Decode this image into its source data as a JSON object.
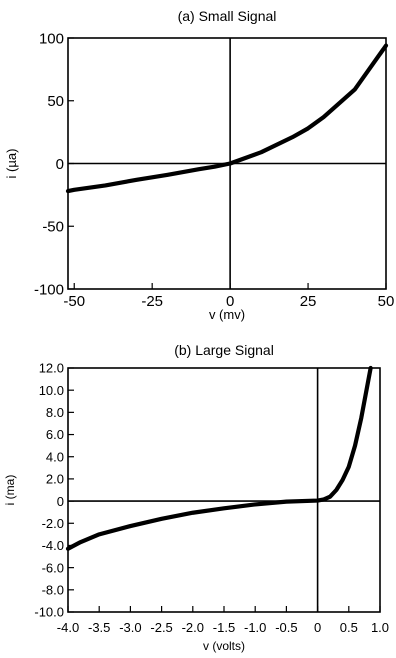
{
  "chart_data": [
    {
      "type": "line",
      "title": "(a) Small Signal",
      "xlabel": "v (mv)",
      "ylabel": "i (µa)",
      "xlim": [
        -52,
        50
      ],
      "ylim": [
        -100,
        100
      ],
      "grid": false,
      "zero_axes": true,
      "x_ticks": [
        -50,
        -25,
        0,
        25,
        50
      ],
      "x_tick_labels": [
        "-50",
        "-25",
        "0",
        "25",
        "50"
      ],
      "y_ticks": [
        100,
        50,
        0,
        -50,
        -100
      ],
      "y_tick_labels": [
        "100",
        "50",
        "0",
        "-50",
        "-100"
      ],
      "series": [
        {
          "line_color": "#000000",
          "x": [
            -52,
            -50,
            -40,
            -30,
            -25,
            -20,
            -10,
            -5,
            0,
            5,
            10,
            20,
            25,
            30,
            40,
            50
          ],
          "y": [
            -22,
            -21,
            -17.5,
            -13,
            -11,
            -9,
            -4.5,
            -2.5,
            0,
            4.5,
            9,
            21,
            28,
            37,
            59,
            94
          ]
        }
      ]
    },
    {
      "type": "line",
      "title": "(b) Large Signal",
      "xlabel": "v (volts)",
      "ylabel": "i (ma)",
      "xlim": [
        -4.0,
        1.0
      ],
      "ylim": [
        -10.0,
        12.0
      ],
      "grid": false,
      "zero_axes": true,
      "x_ticks": [
        -4.0,
        -3.5,
        -3.0,
        -2.5,
        -2.0,
        -1.5,
        -1.0,
        -0.5,
        0,
        0.5,
        1.0
      ],
      "x_tick_labels": [
        "-4.0",
        "-3.5",
        "-3.0",
        "-2.5",
        "-2.0",
        "-1.5",
        "-1.0",
        "-0.5",
        "0",
        "0.5",
        "1.0"
      ],
      "y_ticks": [
        12,
        10,
        8,
        6,
        4,
        2,
        0,
        -2,
        -4,
        -6,
        -8,
        -10
      ],
      "y_tick_labels": [
        "12.0",
        "10.0",
        "8.0",
        "6.0",
        "4.0",
        "2.0",
        "0",
        "-2.0",
        "-4.0",
        "-6.0",
        "-8.0",
        "-10.0"
      ],
      "series": [
        {
          "line_color": "#000000",
          "x": [
            -4.0,
            -3.8,
            -3.5,
            -3.0,
            -2.5,
            -2.0,
            -1.5,
            -1.0,
            -0.5,
            0.0,
            0.1,
            0.2,
            0.3,
            0.4,
            0.5,
            0.6,
            0.7,
            0.8,
            0.85
          ],
          "y": [
            -4.3,
            -3.7,
            -3.0,
            -2.25,
            -1.6,
            -1.05,
            -0.65,
            -0.3,
            -0.05,
            0.05,
            0.15,
            0.4,
            1.0,
            1.9,
            3.1,
            5.0,
            7.5,
            10.5,
            12.0
          ]
        }
      ]
    }
  ]
}
